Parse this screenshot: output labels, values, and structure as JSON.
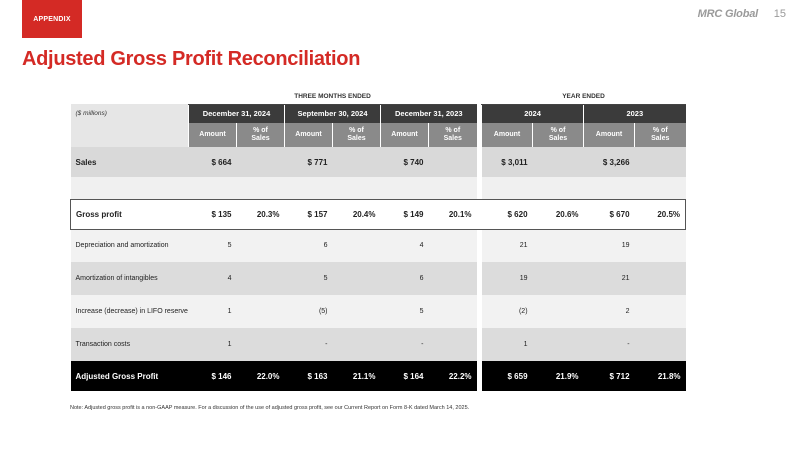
{
  "header": {
    "tab_label": "APPENDIX",
    "brand": "MRC Global",
    "page_number": "15"
  },
  "title": "Adjusted Gross Profit Reconciliation",
  "table": {
    "group_headers": {
      "three_months": "THREE MONTHS ENDED",
      "year": "YEAR ENDED"
    },
    "unit_label": "($ millions)",
    "periods": [
      "December 31, 2024",
      "September 30, 2024",
      "December 31, 2023",
      "2024",
      "2023"
    ],
    "sub_amount": "Amount",
    "sub_pct_line1": "% of",
    "sub_pct_line2": "Sales",
    "rows": [
      {
        "label": "Sales",
        "values": [
          "$ 664",
          "",
          "$ 771",
          "",
          "$ 740",
          "",
          "$ 3,011",
          "",
          "$ 3,266",
          ""
        ]
      },
      {
        "label": "Gross profit",
        "values": [
          "$ 135",
          "20.3%",
          "$ 157",
          "20.4%",
          "$ 149",
          "20.1%",
          "$ 620",
          "20.6%",
          "$ 670",
          "20.5%"
        ]
      },
      {
        "label": "Depreciation and amortization",
        "values": [
          "5",
          "",
          "6",
          "",
          "4",
          "",
          "21",
          "",
          "19",
          ""
        ]
      },
      {
        "label": "Amortization of intangibles",
        "values": [
          "4",
          "",
          "5",
          "",
          "6",
          "",
          "19",
          "",
          "21",
          ""
        ]
      },
      {
        "label": "Increase (decrease) in LIFO reserve",
        "values": [
          "1",
          "",
          "(5)",
          "",
          "5",
          "",
          "(2)",
          "",
          "2",
          ""
        ]
      },
      {
        "label": "Transaction costs",
        "values": [
          "1",
          "",
          "-",
          "",
          "-",
          "",
          "1",
          "",
          "-",
          ""
        ]
      },
      {
        "label": "Adjusted Gross Profit",
        "values": [
          "$ 146",
          "22.0%",
          "$ 163",
          "21.1%",
          "$ 164",
          "22.2%",
          "$ 659",
          "21.9%",
          "$ 712",
          "21.8%"
        ]
      }
    ]
  },
  "note": "Note: Adjusted gross profit is a non-GAAP measure. For a discussion of the use of adjusted gross profit, see our Current Report on Form 8-K dated March 14, 2025.",
  "colors": {
    "accent": "#d42a25",
    "header_dark": "#3b3b3b",
    "header_mid": "#8a8a8a",
    "total_row": "#000000"
  }
}
